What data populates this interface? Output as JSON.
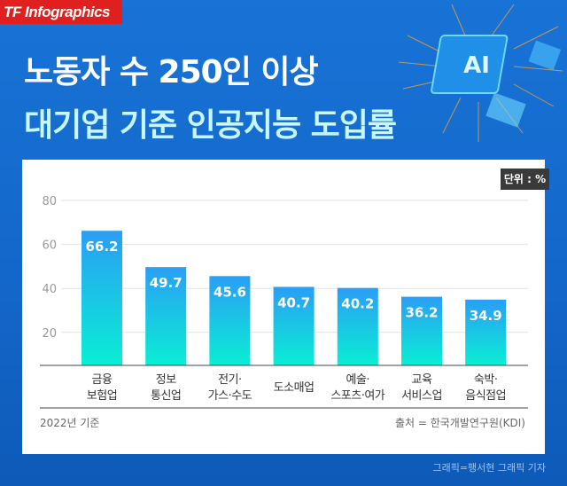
{
  "brand": "TF Infographics",
  "title_line1": "노동자 수 250인 이상",
  "title_line2": "대기업 기준 인공지능 도입률",
  "chip_label": "AI",
  "unit": "단위 : %",
  "footer_left": "2022년 기준",
  "footer_right": "출처 = 한국개발연구원(KDI)",
  "credit": "그래픽=팽서현 그래픽 기자",
  "colors": {
    "bar_top": "#2a9ef5",
    "bar_bottom": "#0aeed4",
    "brand_red": "#e0201e",
    "background": "#1670d2"
  },
  "chart_data": {
    "type": "bar",
    "categories": [
      [
        "금융",
        "보험업"
      ],
      [
        "정보",
        "통신업"
      ],
      [
        "전기·",
        "가스·수도"
      ],
      [
        "도소매업"
      ],
      [
        "예술·",
        "스포츠·여가"
      ],
      [
        "교육",
        "서비스업"
      ],
      [
        "숙박·",
        "음식점업"
      ]
    ],
    "values": [
      66.2,
      49.7,
      45.6,
      40.7,
      40.2,
      36.2,
      34.9
    ],
    "yticks": [
      20,
      40,
      60,
      80
    ],
    "ylim": [
      5,
      80
    ],
    "grid": true,
    "data_labels": [
      "66.2",
      "49.7",
      "45.6",
      "40.7",
      "40.2",
      "36.2",
      "34.9"
    ]
  }
}
